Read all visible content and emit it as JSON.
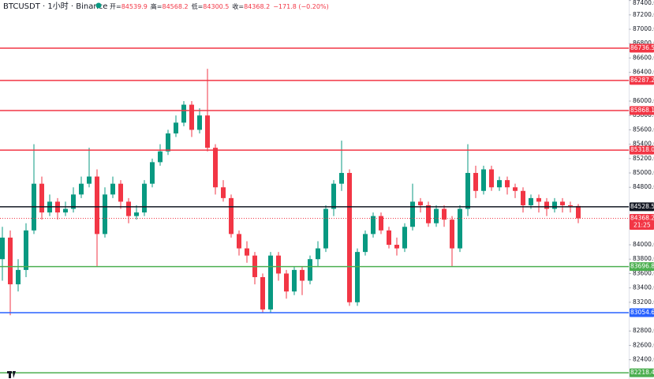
{
  "chart_data": {
    "type": "candlestick",
    "title": "BTCUSDT · 1小时 · Binance",
    "legend": [
      {
        "label": "开=",
        "value": 84539.9
      },
      {
        "label": "高=",
        "value": 84568.2
      },
      {
        "label": "低=",
        "value": 84300.5
      },
      {
        "label": "收=",
        "value": 84368.2
      }
    ],
    "change": "−171.8 (−0.20%)",
    "up_color": "#089981",
    "down_color": "#f23645",
    "open": [
      83800,
      84100,
      83450,
      83650,
      84200,
      84850,
      84450,
      84600,
      84450,
      84500,
      84700,
      84850,
      84950,
      84150,
      84700,
      84850,
      84600,
      84400,
      84450,
      84850,
      85150,
      85300,
      85550,
      85700,
      85950,
      85600,
      85800,
      85350,
      84800,
      84650,
      84150,
      83950,
      83850,
      83550,
      83100,
      83850,
      83600,
      83350,
      83650,
      83500,
      83800,
      83950,
      84500,
      84850,
      85000,
      83200,
      83900,
      84150,
      84400,
      84200,
      84000,
      83950,
      84250,
      84600,
      84550,
      84300,
      84500,
      84350,
      83950,
      84500,
      85000,
      84750,
      85050,
      84800,
      84900,
      84800,
      84750,
      84550,
      84650,
      84600,
      84500,
      84600,
      84550,
      84539.9
    ],
    "high": [
      84250,
      84200,
      83800,
      84300,
      85400,
      84950,
      84700,
      84650,
      84600,
      84800,
      84950,
      85350,
      85050,
      84800,
      84950,
      84900,
      84650,
      84550,
      84900,
      85200,
      85400,
      85600,
      85800,
      86000,
      86000,
      85900,
      86450,
      85400,
      84900,
      84700,
      84200,
      84050,
      83900,
      83600,
      83900,
      83900,
      83650,
      83700,
      83700,
      83850,
      84050,
      84550,
      84900,
      85450,
      85050,
      83950,
      84200,
      84450,
      84450,
      84250,
      84100,
      84300,
      84850,
      84650,
      84600,
      84550,
      84550,
      84400,
      84550,
      85400,
      85100,
      85100,
      85100,
      84950,
      84950,
      84850,
      84800,
      84700,
      84700,
      84650,
      84650,
      84650,
      84600,
      84568.2
    ],
    "low": [
      83500,
      83020,
      83350,
      83550,
      84150,
      84350,
      84400,
      84350,
      84400,
      84450,
      84650,
      84800,
      83700,
      84100,
      84650,
      84500,
      84300,
      84350,
      84400,
      84800,
      85100,
      85250,
      85500,
      85650,
      85500,
      85550,
      85300,
      84700,
      84600,
      84100,
      83850,
      83750,
      83450,
      83050,
      83050,
      83500,
      83250,
      83300,
      83300,
      83450,
      83700,
      83900,
      84400,
      84750,
      83150,
      83150,
      83850,
      84100,
      84150,
      83950,
      83850,
      83900,
      84200,
      84450,
      84250,
      84250,
      84250,
      83700,
      83900,
      84400,
      84650,
      84700,
      84750,
      84750,
      84700,
      84650,
      84450,
      84500,
      84450,
      84400,
      84450,
      84450,
      84450,
      84300.5
    ],
    "close": [
      84100,
      83450,
      83650,
      84200,
      84850,
      84450,
      84600,
      84450,
      84500,
      84700,
      84850,
      84950,
      84150,
      84700,
      84850,
      84600,
      84400,
      84450,
      84850,
      85150,
      85300,
      85550,
      85700,
      85950,
      85600,
      85800,
      85350,
      84800,
      84650,
      84150,
      83950,
      83850,
      83550,
      83100,
      83850,
      83600,
      83350,
      83650,
      83500,
      83800,
      83950,
      84500,
      84850,
      85000,
      83200,
      83900,
      84150,
      84400,
      84200,
      84000,
      83950,
      84250,
      84600,
      84550,
      84300,
      84500,
      84350,
      83950,
      84500,
      85000,
      84750,
      85050,
      84800,
      84900,
      84800,
      84750,
      84550,
      84650,
      84600,
      84500,
      84600,
      84550,
      84540,
      84368.2
    ],
    "ylim": [
      82132,
      87407
    ],
    "yticks": [
      {
        "value": 87400,
        "label": "87400.0"
      },
      {
        "value": 87200,
        "label": "87200.0"
      },
      {
        "value": 87000,
        "label": "87000.0"
      },
      {
        "value": 86800,
        "label": "86800.0"
      },
      {
        "value": 86600,
        "label": "86600.0"
      },
      {
        "value": 86400,
        "label": "86400.0"
      },
      {
        "value": 86000,
        "label": "86000.0"
      },
      {
        "value": 85800,
        "label": "85800.0"
      },
      {
        "value": 85600,
        "label": "85600.0"
      },
      {
        "value": 85400,
        "label": "85400.0"
      },
      {
        "value": 85200,
        "label": "85200.0"
      },
      {
        "value": 85000,
        "label": "85000.0"
      },
      {
        "value": 84800,
        "label": "84800.0"
      },
      {
        "value": 84000,
        "label": "84000.0"
      },
      {
        "value": 83800,
        "label": "83800.0"
      },
      {
        "value": 83600,
        "label": "83600.0"
      },
      {
        "value": 83400,
        "label": "83400.0"
      },
      {
        "value": 83200,
        "label": "83200.0"
      },
      {
        "value": 82800,
        "label": "82800.0"
      },
      {
        "value": 82600,
        "label": "82600.0"
      },
      {
        "value": 82400,
        "label": "82400.0"
      }
    ],
    "levels": [
      {
        "value": 86736.5,
        "color": "#f23645"
      },
      {
        "value": 86287.2,
        "color": "#f23645"
      },
      {
        "value": 85868.1,
        "color": "#f23645"
      },
      {
        "value": 85318.0,
        "label": "85318.0",
        "color": "#f23645"
      },
      {
        "value": 84528.5,
        "color": "#131722"
      },
      {
        "value": 83696.8,
        "color": "#4caf50"
      },
      {
        "value": 83054.6,
        "color": "#2962ff"
      },
      {
        "value": 82218.4,
        "color": "#4caf50"
      }
    ],
    "last_price": {
      "value": 84368.2,
      "countdown": "21:25",
      "color": "#f23645"
    }
  }
}
